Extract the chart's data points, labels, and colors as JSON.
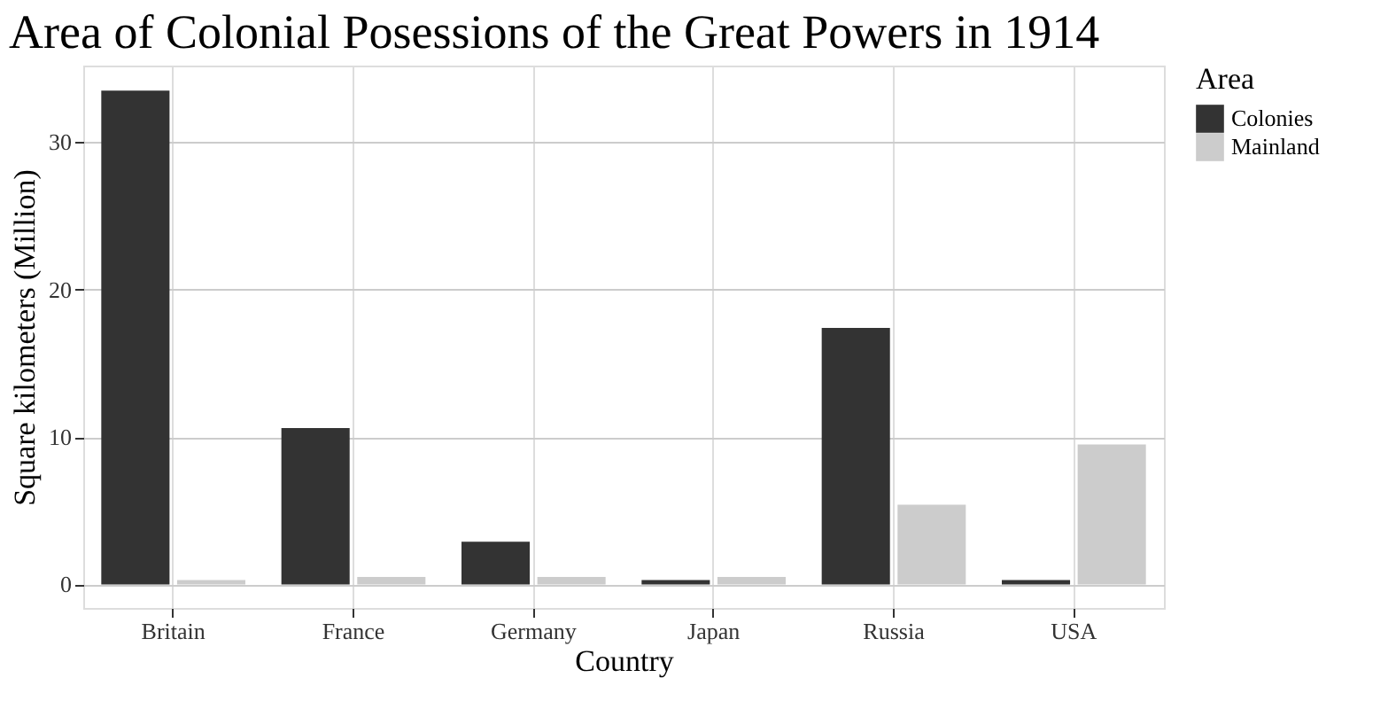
{
  "chart_data": {
    "type": "bar",
    "title": "Area of Colonial Posessions of the Great Powers in 1914",
    "xlabel": "Country",
    "ylabel": "Square kilometers (Million)",
    "legend_title": "Area",
    "categories": [
      "Britain",
      "France",
      "Germany",
      "Japan",
      "Russia",
      "USA"
    ],
    "series": [
      {
        "name": "Colonies",
        "color": "#333333",
        "values": [
          33.5,
          10.6,
          2.9,
          0.3,
          17.4,
          0.3
        ]
      },
      {
        "name": "Mainland",
        "color": "#cccccc",
        "values": [
          0.3,
          0.5,
          0.5,
          0.5,
          5.4,
          9.5
        ]
      }
    ],
    "ylim": [
      -1.6,
      35.2
    ],
    "yticks": [
      0,
      10,
      20,
      30
    ],
    "grid": true,
    "legend": "right"
  }
}
